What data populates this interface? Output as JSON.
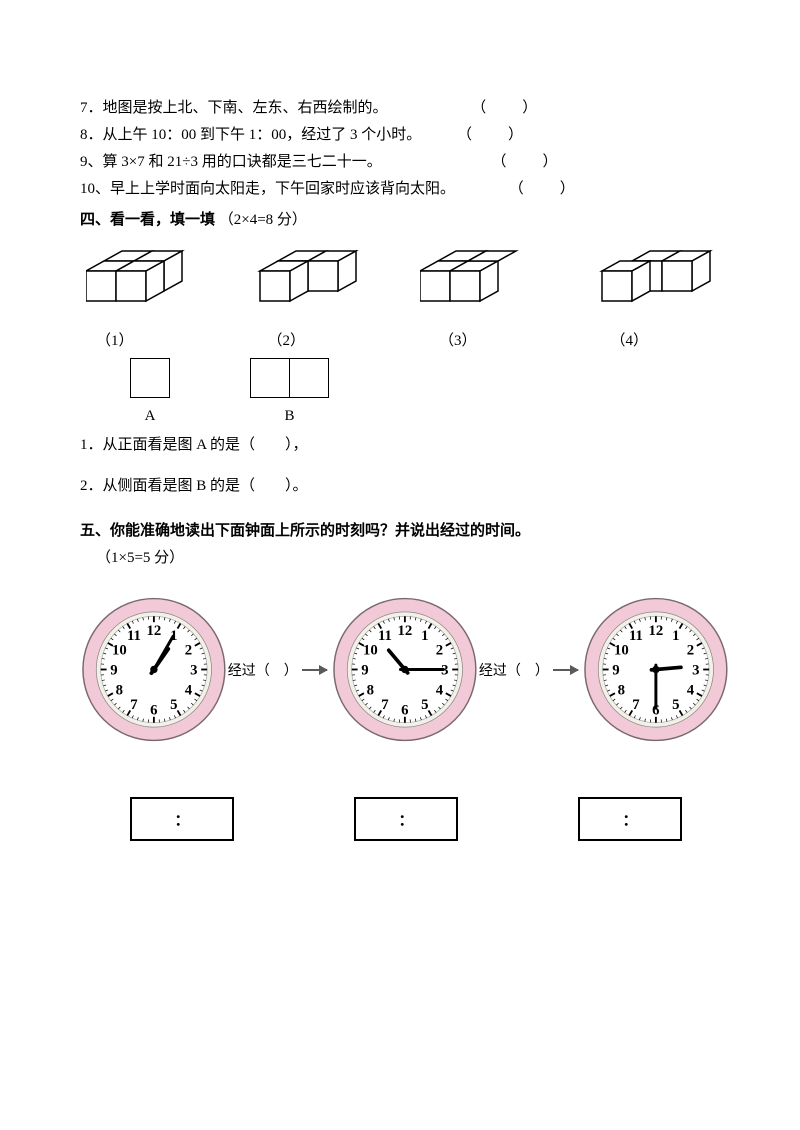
{
  "questions": {
    "q7": "7．地图是按上北、下南、左东、右西绘制的。",
    "q8": "8．从上午 10：00 到下午 1：00，经过了 3 个小时。",
    "q9": "9、算 3×7 和 21÷3 用的口诀都是三七二十一。",
    "q10": "10、早上上学时面向太阳走，下午回家时应该背向太阳。",
    "paren": "（　　）"
  },
  "section4": {
    "title": "四、看一看，填一填",
    "score": "（2×4=8 分）",
    "labels": [
      "（1）",
      "（2）",
      "（3）",
      "（4）"
    ],
    "shapeA": "A",
    "shapeB": "B",
    "sub1": "1．从正面看是图 A 的是（　　），",
    "sub2": "2．从侧面看是图 B 的是（　　）。"
  },
  "section5": {
    "title": "五、你能准确地读出下面钟面上所示的时刻吗？并说出经过的时间。",
    "score": "（1×5=5 分）",
    "elapsed": "经过（　）",
    "colon": "："
  },
  "clocks": [
    {
      "hourAngle": 35,
      "minuteAngle": 30
    },
    {
      "hourAngle": 320,
      "minuteAngle": 90
    },
    {
      "hourAngle": 85,
      "minuteAngle": 180
    }
  ],
  "style": {
    "clockRim": "#f2c9d6",
    "clockFace": "#f3f0e8",
    "clockInner": "#ffffff",
    "cubeFill": "#ffffff",
    "cubeStroke": "#000000"
  }
}
